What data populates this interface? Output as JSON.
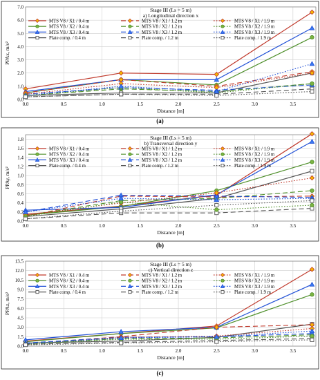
{
  "chart_data": [
    {
      "type": "line",
      "title": "Stage III (Ls = 5 m)",
      "subtitle": "a) Longitudinal direction x",
      "caption": "(a)",
      "ylabel": "PPAx, m/s²",
      "xlabel": "Distance [m]",
      "xlim": [
        0.0,
        3.8
      ],
      "ylim": [
        0.0,
        7.0
      ],
      "xticks": [
        "0.0",
        "0.5",
        "1.0",
        "1.5",
        "2.0",
        "2.5",
        "3.0",
        "3.5"
      ],
      "yticks": [
        "0.0",
        "1.0",
        "2.0",
        "3.0",
        "4.0",
        "5.0",
        "6.0",
        "7.0"
      ],
      "grid": true,
      "legend_position": "top, inside plot area, 3 columns",
      "x": [
        0.0,
        1.25,
        2.5,
        3.75
      ],
      "series": [
        {
          "name": "MTS V8 / X1 / 0.4 m",
          "values": [
            0.8,
            2.0,
            1.9,
            6.6
          ],
          "color": "#c0392b",
          "marker": "diamond",
          "dash": "solid"
        },
        {
          "name": "MTS V8 / X2 / 0.4 m",
          "values": [
            0.5,
            1.5,
            1.1,
            4.7
          ],
          "color": "#4e8f2a",
          "marker": "circle",
          "dash": "solid"
        },
        {
          "name": "MTS V8 / X3 / 0.4 m",
          "values": [
            0.6,
            1.5,
            1.5,
            5.4
          ],
          "color": "#1f4fd6",
          "marker": "triangle",
          "dash": "solid"
        },
        {
          "name": "Plate comp. / 0.4 m",
          "values": [
            0.3,
            0.5,
            0.5,
            2.0
          ],
          "color": "#555555",
          "marker": "square",
          "dash": "solid"
        },
        {
          "name": "MTS V8 / X1 / 1.2 m",
          "values": [
            0.5,
            1.5,
            1.0,
            2.1
          ],
          "color": "#c0392b",
          "marker": "diamond",
          "dash": "long"
        },
        {
          "name": "MTS V8 / X2 / 1.2 m",
          "values": [
            0.3,
            0.8,
            0.6,
            1.2
          ],
          "color": "#4e8f2a",
          "marker": "circle",
          "dash": "long"
        },
        {
          "name": "MTS V8 / X3 / 1.2 m",
          "values": [
            0.4,
            0.9,
            0.7,
            1.1
          ],
          "color": "#1f4fd6",
          "marker": "triangle",
          "dash": "long"
        },
        {
          "name": "Plate comp. / 1.2 m",
          "values": [
            0.2,
            0.4,
            0.4,
            0.8
          ],
          "color": "#555555",
          "marker": "square",
          "dash": "long"
        },
        {
          "name": "MTS V8 / X1 / 1.9 m",
          "values": [
            0.4,
            1.2,
            0.9,
            2.0
          ],
          "color": "#c0392b",
          "marker": "diamond",
          "dash": "dot"
        },
        {
          "name": "MTS V8 / X2 / 1.9 m",
          "values": [
            0.3,
            0.9,
            0.5,
            1.2
          ],
          "color": "#4e8f2a",
          "marker": "circle",
          "dash": "dot"
        },
        {
          "name": "MTS V8 / X3 / 1.9 m",
          "values": [
            0.3,
            1.0,
            0.6,
            2.7
          ],
          "color": "#1f4fd6",
          "marker": "triangle",
          "dash": "dot"
        },
        {
          "name": "Plate comp. / 1.9 m",
          "values": [
            0.2,
            0.4,
            0.3,
            0.6
          ],
          "color": "#555555",
          "marker": "square",
          "dash": "dot"
        }
      ]
    },
    {
      "type": "line",
      "title": "Stage III (Ls = 5 m)",
      "subtitle": "b) Transversal direction y",
      "caption": "(b)",
      "ylabel": "PPAy, m/s²",
      "xlabel": "Distance [m]",
      "xlim": [
        0.0,
        3.8
      ],
      "ylim": [
        0.0,
        1.9
      ],
      "xticks": [
        "0.0",
        "0.5",
        "1.0",
        "1.5",
        "2.0",
        "2.5",
        "3.0",
        "3.5"
      ],
      "yticks": [
        "0.0",
        "0.2",
        "0.4",
        "0.6",
        "0.8",
        "1.0",
        "1.2",
        "1.4",
        "1.6",
        "1.8"
      ],
      "grid": true,
      "legend_position": "top, inside plot area, 3 columns",
      "x": [
        0.0,
        1.25,
        2.5,
        3.75
      ],
      "series": [
        {
          "name": "MTS V8 / X1 / 0.4 m",
          "values": [
            0.15,
            0.33,
            0.57,
            1.92
          ],
          "color": "#c0392b",
          "marker": "diamond",
          "dash": "solid"
        },
        {
          "name": "MTS V8 / X2 / 0.4 m",
          "values": [
            0.13,
            0.32,
            0.67,
            1.3
          ],
          "color": "#4e8f2a",
          "marker": "circle",
          "dash": "solid"
        },
        {
          "name": "MTS V8 / X3 / 0.4 m",
          "values": [
            0.24,
            0.3,
            0.58,
            1.75
          ],
          "color": "#1f4fd6",
          "marker": "triangle",
          "dash": "solid"
        },
        {
          "name": "Plate comp. / 0.4 m",
          "values": [
            0.1,
            0.27,
            0.5,
            1.1
          ],
          "color": "#555555",
          "marker": "square",
          "dash": "solid"
        },
        {
          "name": "MTS V8 / X1 / 1.2 m",
          "values": [
            0.1,
            0.55,
            0.53,
            0.55
          ],
          "color": "#c0392b",
          "marker": "diamond",
          "dash": "long"
        },
        {
          "name": "MTS V8 / X2 / 1.2 m",
          "values": [
            0.12,
            0.45,
            0.5,
            0.67
          ],
          "color": "#4e8f2a",
          "marker": "circle",
          "dash": "long"
        },
        {
          "name": "MTS V8 / X3 / 1.2 m",
          "values": [
            0.2,
            0.57,
            0.55,
            0.52
          ],
          "color": "#1f4fd6",
          "marker": "triangle",
          "dash": "long"
        },
        {
          "name": "Plate comp. / 1.2 m",
          "values": [
            0.05,
            0.18,
            0.18,
            0.28
          ],
          "color": "#555555",
          "marker": "square",
          "dash": "long"
        },
        {
          "name": "MTS V8 / X1 / 1.9 m",
          "values": [
            0.13,
            0.4,
            0.62,
            0.95
          ],
          "color": "#c0392b",
          "marker": "diamond",
          "dash": "dot"
        },
        {
          "name": "MTS V8 / X2 / 1.9 m",
          "values": [
            0.1,
            0.42,
            0.25,
            0.35
          ],
          "color": "#4e8f2a",
          "marker": "circle",
          "dash": "dot"
        },
        {
          "name": "MTS V8 / X3 / 1.9 m",
          "values": [
            0.2,
            0.5,
            0.47,
            0.5
          ],
          "color": "#1f4fd6",
          "marker": "triangle",
          "dash": "dot"
        },
        {
          "name": "Plate comp. / 1.9 m",
          "values": [
            0.05,
            0.22,
            0.35,
            0.45
          ],
          "color": "#555555",
          "marker": "square",
          "dash": "dot"
        }
      ]
    },
    {
      "type": "line",
      "title": "Stage III (Ls = 5 m)",
      "subtitle": "c) Vertical direction z",
      "caption": "(c)",
      "ylabel": "PPAz, m/s²",
      "xlabel": "Distance [m]",
      "xlim": [
        0.0,
        3.8
      ],
      "ylim": [
        0.0,
        13.5
      ],
      "xticks": [
        "0.0",
        "0.5",
        "1.0",
        "1.5",
        "2.0",
        "2.5",
        "3.0",
        "3.5"
      ],
      "yticks": [
        "0.0",
        "1.5",
        "3.0",
        "4.5",
        "6.0",
        "7.5",
        "9.0",
        "10.5",
        "12.0",
        "13.5"
      ],
      "grid": true,
      "legend_position": "top, inside plot area, 3 columns",
      "x": [
        0.0,
        1.25,
        2.5,
        3.75
      ],
      "series": [
        {
          "name": "MTS V8 / X1 / 0.4 m",
          "values": [
            0.8,
            2.0,
            3.2,
            12.2
          ],
          "color": "#c0392b",
          "marker": "diamond",
          "dash": "solid"
        },
        {
          "name": "MTS V8 / X2 / 0.4 m",
          "values": [
            0.7,
            2.0,
            2.9,
            8.2
          ],
          "color": "#4e8f2a",
          "marker": "circle",
          "dash": "solid"
        },
        {
          "name": "MTS V8 / X3 / 0.4 m",
          "values": [
            1.0,
            2.3,
            3.0,
            9.8
          ],
          "color": "#1f4fd6",
          "marker": "triangle",
          "dash": "solid"
        },
        {
          "name": "Plate comp. / 0.4 m",
          "values": [
            0.5,
            0.8,
            1.4,
            3.5
          ],
          "color": "#555555",
          "marker": "square",
          "dash": "solid"
        },
        {
          "name": "MTS V8 / X1 / 1.2 m",
          "values": [
            0.4,
            1.5,
            3.0,
            3.4
          ],
          "color": "#c0392b",
          "marker": "diamond",
          "dash": "long"
        },
        {
          "name": "MTS V8 / X2 / 1.2 m",
          "values": [
            0.4,
            1.2,
            1.3,
            1.8
          ],
          "color": "#4e8f2a",
          "marker": "circle",
          "dash": "long"
        },
        {
          "name": "MTS V8 / X3 / 1.2 m",
          "values": [
            0.5,
            1.4,
            1.5,
            2.0
          ],
          "color": "#1f4fd6",
          "marker": "triangle",
          "dash": "long"
        },
        {
          "name": "Plate comp. / 1.2 m",
          "values": [
            0.3,
            0.6,
            0.9,
            1.2
          ],
          "color": "#555555",
          "marker": "square",
          "dash": "long"
        },
        {
          "name": "MTS V8 / X1 / 1.9 m",
          "values": [
            0.3,
            1.4,
            1.6,
            2.8
          ],
          "color": "#c0392b",
          "marker": "diamond",
          "dash": "dot"
        },
        {
          "name": "MTS V8 / X2 / 1.9 m",
          "values": [
            0.3,
            1.1,
            1.1,
            1.6
          ],
          "color": "#4e8f2a",
          "marker": "circle",
          "dash": "dot"
        },
        {
          "name": "MTS V8 / X3 / 1.9 m",
          "values": [
            0.4,
            1.3,
            1.5,
            2.4
          ],
          "color": "#1f4fd6",
          "marker": "triangle",
          "dash": "dot"
        },
        {
          "name": "Plate comp. / 1.9 m",
          "values": [
            0.2,
            0.5,
            0.7,
            1.0
          ],
          "color": "#555555",
          "marker": "square",
          "dash": "dot"
        }
      ]
    }
  ]
}
